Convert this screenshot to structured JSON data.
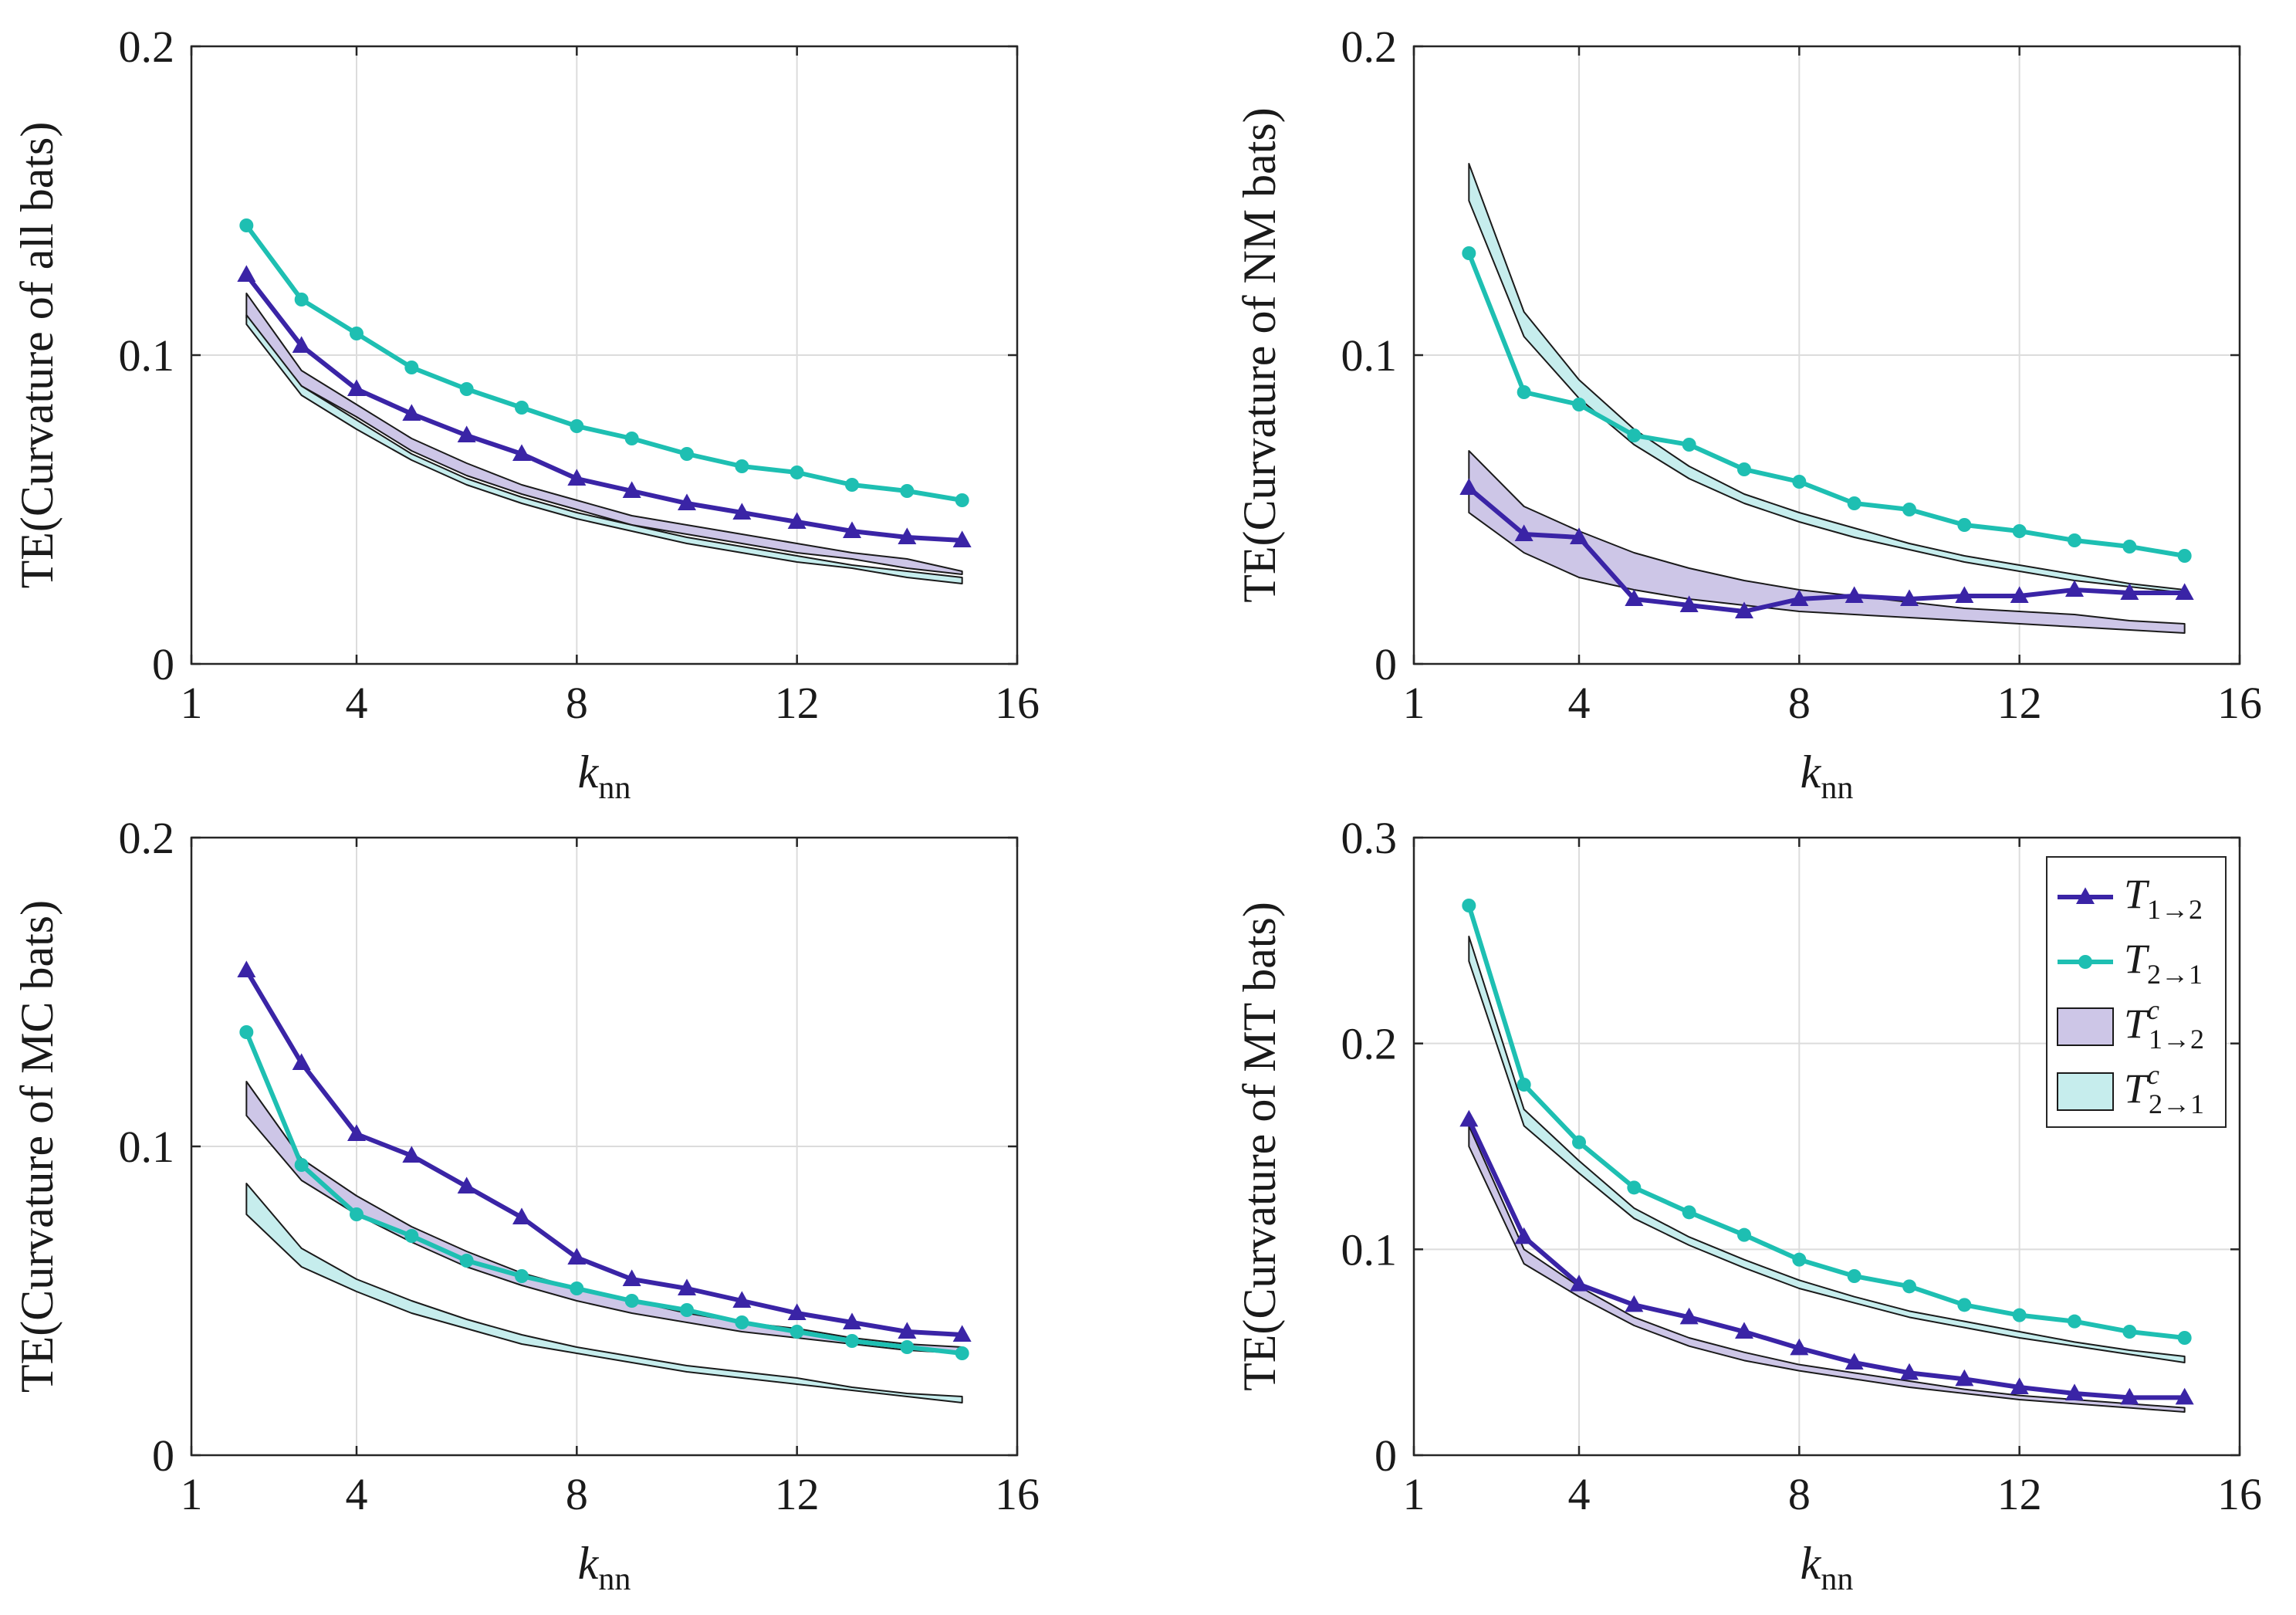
{
  "colors": {
    "t12": "#3a24a6",
    "t21": "#1ebfb2",
    "band12": "#cdc6e7",
    "band21": "#c6eded",
    "band_edge": "#1a1a1a"
  },
  "legend": {
    "items": [
      {
        "base": "T",
        "sub": "1→2",
        "sup": "",
        "kind": "line-triangle",
        "color_key": "t12"
      },
      {
        "base": "T",
        "sub": "2→1",
        "sup": "",
        "kind": "line-circle",
        "color_key": "t21"
      },
      {
        "base": "T",
        "sub": "1→2",
        "sup": "c",
        "kind": "band",
        "color_key": "band12"
      },
      {
        "base": "T",
        "sub": "2→1",
        "sup": "c",
        "kind": "band",
        "color_key": "band21"
      }
    ]
  },
  "chart_data": [
    {
      "type": "line",
      "panel": "top-left",
      "ylabel": "TE(Curvature of all bats)",
      "xlabel_base": "k",
      "xlabel_sub": "nn",
      "xlim": [
        1,
        16
      ],
      "ylim": [
        0,
        0.2
      ],
      "xticks": [
        1,
        4,
        8,
        12,
        16
      ],
      "yticks": [
        0,
        0.1,
        0.2
      ],
      "ytick_labels": [
        "0",
        "0.1",
        "0.2"
      ],
      "grid": true,
      "x": [
        2,
        3,
        4,
        5,
        6,
        7,
        8,
        9,
        10,
        11,
        12,
        13,
        14,
        15
      ],
      "series": [
        {
          "name": "T1→2",
          "values": [
            0.126,
            0.103,
            0.089,
            0.081,
            0.074,
            0.068,
            0.06,
            0.056,
            0.052,
            0.049,
            0.046,
            0.043,
            0.041,
            0.04
          ]
        },
        {
          "name": "T2→1",
          "values": [
            0.142,
            0.118,
            0.107,
            0.096,
            0.089,
            0.083,
            0.077,
            0.073,
            0.068,
            0.064,
            0.062,
            0.058,
            0.056,
            0.053
          ]
        }
      ],
      "bands": [
        {
          "name": "T^c 1→2",
          "lower": [
            0.112,
            0.09,
            0.08,
            0.069,
            0.061,
            0.055,
            0.05,
            0.045,
            0.042,
            0.039,
            0.036,
            0.034,
            0.031,
            0.029
          ],
          "upper": [
            0.12,
            0.095,
            0.084,
            0.073,
            0.065,
            0.058,
            0.053,
            0.048,
            0.045,
            0.042,
            0.039,
            0.036,
            0.034,
            0.03
          ]
        },
        {
          "name": "T^c 2→1",
          "lower": [
            0.11,
            0.087,
            0.076,
            0.066,
            0.058,
            0.052,
            0.047,
            0.043,
            0.039,
            0.036,
            0.033,
            0.031,
            0.028,
            0.026
          ],
          "upper": [
            0.113,
            0.09,
            0.079,
            0.068,
            0.06,
            0.054,
            0.049,
            0.045,
            0.041,
            0.038,
            0.035,
            0.032,
            0.03,
            0.028
          ]
        }
      ]
    },
    {
      "type": "line",
      "panel": "top-right",
      "ylabel": "TE(Curvature of NM bats)",
      "xlabel_base": "k",
      "xlabel_sub": "nn",
      "xlim": [
        1,
        16
      ],
      "ylim": [
        0,
        0.2
      ],
      "xticks": [
        1,
        4,
        8,
        12,
        16
      ],
      "yticks": [
        0,
        0.1,
        0.2
      ],
      "ytick_labels": [
        "0",
        "0.1",
        "0.2"
      ],
      "grid": true,
      "x": [
        2,
        3,
        4,
        5,
        6,
        7,
        8,
        9,
        10,
        11,
        12,
        13,
        14,
        15
      ],
      "series": [
        {
          "name": "T1→2",
          "values": [
            0.057,
            0.042,
            0.041,
            0.021,
            0.019,
            0.017,
            0.021,
            0.022,
            0.021,
            0.022,
            0.022,
            0.024,
            0.023,
            0.023
          ]
        },
        {
          "name": "T2→1",
          "values": [
            0.133,
            0.088,
            0.084,
            0.074,
            0.071,
            0.063,
            0.059,
            0.052,
            0.05,
            0.045,
            0.043,
            0.04,
            0.038,
            0.035
          ]
        }
      ],
      "bands": [
        {
          "name": "T^c 1→2",
          "lower": [
            0.049,
            0.036,
            0.028,
            0.024,
            0.021,
            0.019,
            0.017,
            0.016,
            0.015,
            0.014,
            0.013,
            0.012,
            0.011,
            0.01
          ],
          "upper": [
            0.069,
            0.051,
            0.043,
            0.036,
            0.031,
            0.027,
            0.024,
            0.022,
            0.02,
            0.018,
            0.017,
            0.016,
            0.014,
            0.013
          ]
        },
        {
          "name": "T^c 2→1",
          "lower": [
            0.15,
            0.106,
            0.086,
            0.071,
            0.06,
            0.052,
            0.046,
            0.041,
            0.037,
            0.033,
            0.03,
            0.027,
            0.025,
            0.023
          ],
          "upper": [
            0.162,
            0.114,
            0.092,
            0.076,
            0.064,
            0.055,
            0.049,
            0.044,
            0.039,
            0.035,
            0.032,
            0.029,
            0.026,
            0.024
          ]
        }
      ]
    },
    {
      "type": "line",
      "panel": "bottom-left",
      "ylabel": "TE(Curvature of MC bats)",
      "xlabel_base": "k",
      "xlabel_sub": "nn",
      "xlim": [
        1,
        16
      ],
      "ylim": [
        0,
        0.2
      ],
      "xticks": [
        1,
        4,
        8,
        12,
        16
      ],
      "yticks": [
        0,
        0.1,
        0.2
      ],
      "ytick_labels": [
        "0",
        "0.1",
        "0.2"
      ],
      "grid": true,
      "x": [
        2,
        3,
        4,
        5,
        6,
        7,
        8,
        9,
        10,
        11,
        12,
        13,
        14,
        15
      ],
      "series": [
        {
          "name": "T1→2",
          "values": [
            0.157,
            0.127,
            0.104,
            0.097,
            0.087,
            0.077,
            0.064,
            0.057,
            0.054,
            0.05,
            0.046,
            0.043,
            0.04,
            0.039
          ]
        },
        {
          "name": "T2→1",
          "values": [
            0.137,
            0.094,
            0.078,
            0.071,
            0.063,
            0.058,
            0.054,
            0.05,
            0.047,
            0.043,
            0.04,
            0.037,
            0.035,
            0.033
          ]
        }
      ],
      "bands": [
        {
          "name": "T^c 1→2",
          "lower": [
            0.11,
            0.089,
            0.078,
            0.069,
            0.061,
            0.055,
            0.05,
            0.046,
            0.043,
            0.04,
            0.038,
            0.036,
            0.034,
            0.033
          ],
          "upper": [
            0.121,
            0.096,
            0.084,
            0.074,
            0.066,
            0.059,
            0.054,
            0.05,
            0.046,
            0.043,
            0.041,
            0.038,
            0.036,
            0.035
          ]
        },
        {
          "name": "T^c 2→1",
          "lower": [
            0.078,
            0.061,
            0.053,
            0.046,
            0.041,
            0.036,
            0.033,
            0.03,
            0.027,
            0.025,
            0.023,
            0.021,
            0.019,
            0.017
          ],
          "upper": [
            0.088,
            0.067,
            0.057,
            0.05,
            0.044,
            0.039,
            0.035,
            0.032,
            0.029,
            0.027,
            0.025,
            0.022,
            0.02,
            0.019
          ]
        }
      ]
    },
    {
      "type": "line",
      "panel": "bottom-right",
      "ylabel": "TE(Curvature of MT bats)",
      "xlabel_base": "k",
      "xlabel_sub": "nn",
      "xlim": [
        1,
        16
      ],
      "ylim": [
        0,
        0.3
      ],
      "xticks": [
        1,
        4,
        8,
        12,
        16
      ],
      "yticks": [
        0,
        0.1,
        0.2,
        0.3
      ],
      "ytick_labels": [
        "0",
        "0.1",
        "0.2",
        "0.3"
      ],
      "grid": true,
      "legend_position": "top-right",
      "x": [
        2,
        3,
        4,
        5,
        6,
        7,
        8,
        9,
        10,
        11,
        12,
        13,
        14,
        15
      ],
      "series": [
        {
          "name": "T1→2",
          "values": [
            0.163,
            0.106,
            0.083,
            0.073,
            0.067,
            0.06,
            0.052,
            0.045,
            0.04,
            0.037,
            0.033,
            0.03,
            0.028,
            0.028
          ]
        },
        {
          "name": "T2→1",
          "values": [
            0.267,
            0.18,
            0.152,
            0.13,
            0.118,
            0.107,
            0.095,
            0.087,
            0.082,
            0.073,
            0.068,
            0.065,
            0.06,
            0.057
          ]
        }
      ],
      "bands": [
        {
          "name": "T^c 1→2",
          "lower": [
            0.15,
            0.093,
            0.077,
            0.063,
            0.053,
            0.046,
            0.041,
            0.037,
            0.033,
            0.03,
            0.027,
            0.025,
            0.023,
            0.021
          ],
          "upper": [
            0.16,
            0.1,
            0.082,
            0.067,
            0.057,
            0.05,
            0.044,
            0.04,
            0.036,
            0.032,
            0.029,
            0.027,
            0.025,
            0.023
          ]
        },
        {
          "name": "T^c 2→1",
          "lower": [
            0.24,
            0.16,
            0.137,
            0.115,
            0.102,
            0.091,
            0.081,
            0.074,
            0.067,
            0.062,
            0.057,
            0.053,
            0.049,
            0.045
          ],
          "upper": [
            0.252,
            0.168,
            0.143,
            0.12,
            0.106,
            0.095,
            0.085,
            0.077,
            0.07,
            0.065,
            0.06,
            0.055,
            0.051,
            0.048
          ]
        }
      ]
    }
  ]
}
